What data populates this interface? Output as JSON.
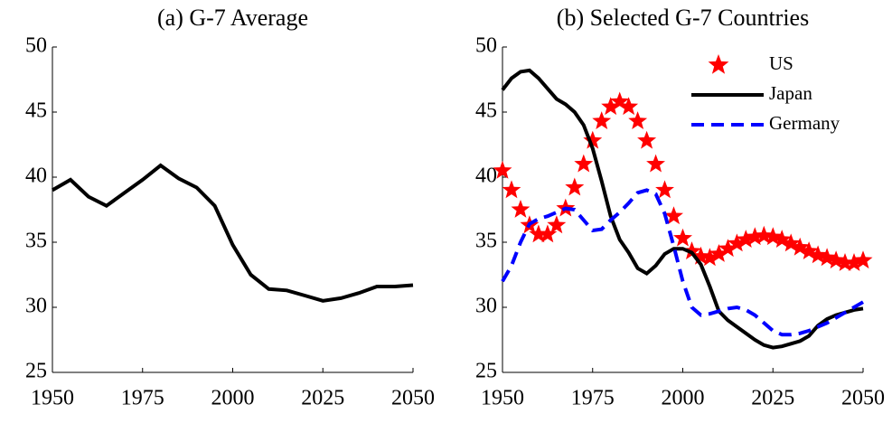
{
  "chart_data": [
    {
      "type": "line",
      "title": "(a) G-7 Average",
      "x": [
        1950,
        1955,
        1960,
        1965,
        1970,
        1975,
        1980,
        1985,
        1990,
        1995,
        2000,
        2005,
        2010,
        2015,
        2020,
        2025,
        2030,
        2035,
        2040,
        2045,
        2050
      ],
      "series": [
        {
          "name": "G-7 Average",
          "color": "#000000",
          "line_style": "solid",
          "values": [
            39.0,
            39.8,
            38.5,
            37.8,
            38.8,
            39.8,
            40.9,
            39.9,
            39.2,
            37.8,
            34.8,
            32.5,
            31.4,
            31.3,
            30.9,
            30.5,
            30.7,
            31.1,
            31.6,
            31.6,
            31.7
          ]
        }
      ],
      "xlim": [
        1950,
        2050
      ],
      "xticks": [
        1950,
        1975,
        2000,
        2025,
        2050
      ],
      "ylim": [
        25,
        50
      ],
      "yticks": [
        25,
        30,
        35,
        40,
        45,
        50
      ]
    },
    {
      "type": "line",
      "title": "(b) Selected G-7 Countries",
      "x": [
        1950,
        1952.5,
        1955,
        1957.5,
        1960,
        1962.5,
        1965,
        1967.5,
        1970,
        1972.5,
        1975,
        1977.5,
        1980,
        1982.5,
        1985,
        1987.5,
        1990,
        1992.5,
        1995,
        1997.5,
        2000,
        2002.5,
        2005,
        2007.5,
        2010,
        2012.5,
        2015,
        2017.5,
        2020,
        2022.5,
        2025,
        2027.5,
        2030,
        2032.5,
        2035,
        2037.5,
        2040,
        2042.5,
        2045,
        2047.5,
        2050
      ],
      "series": [
        {
          "name": "US",
          "color": "#ff0000",
          "line_style": "none",
          "marker": "star",
          "values": [
            40.5,
            39.0,
            37.5,
            36.3,
            35.6,
            35.6,
            36.3,
            37.6,
            39.2,
            41.0,
            42.8,
            44.3,
            45.4,
            45.8,
            45.4,
            44.3,
            42.8,
            41.0,
            39.0,
            37.0,
            35.3,
            34.3,
            33.9,
            33.8,
            34.1,
            34.5,
            34.9,
            35.2,
            35.4,
            35.5,
            35.4,
            35.2,
            34.9,
            34.6,
            34.3,
            34.0,
            33.8,
            33.6,
            33.4,
            33.4,
            33.6
          ]
        },
        {
          "name": "Japan",
          "color": "#000000",
          "line_style": "solid",
          "values": [
            46.7,
            47.6,
            48.1,
            48.2,
            47.6,
            46.8,
            46.0,
            45.6,
            45.0,
            44.0,
            42.2,
            39.7,
            37.0,
            35.2,
            34.2,
            33.0,
            32.6,
            33.2,
            34.1,
            34.5,
            34.5,
            34.2,
            33.3,
            31.6,
            29.7,
            29.0,
            28.5,
            28.0,
            27.5,
            27.1,
            26.9,
            27.0,
            27.2,
            27.4,
            27.8,
            28.6,
            29.1,
            29.4,
            29.6,
            29.8,
            29.9
          ]
        },
        {
          "name": "Germany",
          "color": "#0000ff",
          "line_style": "dashed",
          "values": [
            32.0,
            33.2,
            35.0,
            36.4,
            36.8,
            37.0,
            37.3,
            37.6,
            37.5,
            36.7,
            35.9,
            36.0,
            36.7,
            37.3,
            38.0,
            38.8,
            39.0,
            38.7,
            37.2,
            34.7,
            32.0,
            30.0,
            29.4,
            29.5,
            29.7,
            29.9,
            30.0,
            29.8,
            29.4,
            28.8,
            28.2,
            27.9,
            27.9,
            28.0,
            28.2,
            28.5,
            28.8,
            29.2,
            29.6,
            30.0,
            30.4
          ]
        }
      ],
      "xlim": [
        1950,
        2050
      ],
      "xticks": [
        1950,
        1975,
        2000,
        2025,
        2050
      ],
      "ylim": [
        25,
        50
      ],
      "yticks": [
        25,
        30,
        35,
        40,
        45,
        50
      ],
      "legend": "upper right"
    }
  ]
}
